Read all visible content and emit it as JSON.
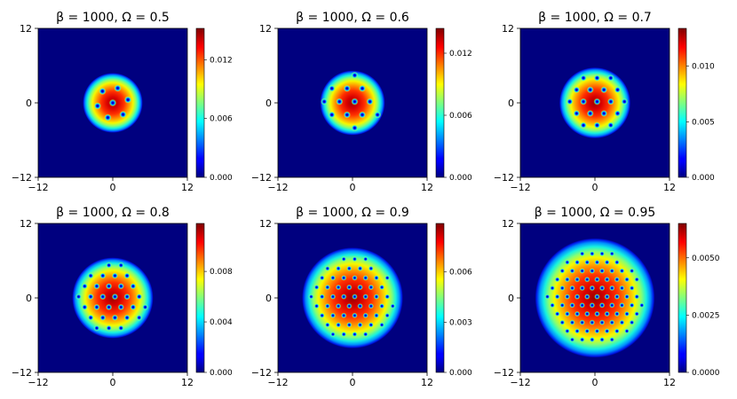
{
  "chart_data": [
    {
      "type": "heatmap",
      "title": "β = 1000, Ω = 0.5",
      "xticks": [
        "−12",
        "0",
        "12"
      ],
      "yticks": [
        "12",
        "0",
        "−12"
      ],
      "xlim": [
        -12,
        12
      ],
      "ylim": [
        -12,
        12
      ],
      "colorbar": {
        "range": [
          0,
          0.0152
        ],
        "ticks": [
          0,
          0.006,
          0.012
        ],
        "tick_labels": [
          "0.000",
          "0.006",
          "0.012"
        ]
      },
      "colormap": "jet",
      "condensate_radius": 4.8,
      "vortex_count": 7
    },
    {
      "type": "heatmap",
      "title": "β = 1000, Ω = 0.6",
      "xticks": [
        "−12",
        "0",
        "12"
      ],
      "yticks": [
        "12",
        "0",
        "−12"
      ],
      "xlim": [
        -12,
        12
      ],
      "ylim": [
        -12,
        12
      ],
      "colorbar": {
        "range": [
          0,
          0.0144
        ],
        "ticks": [
          0,
          0.006,
          0.012
        ],
        "tick_labels": [
          "0.000",
          "0.006",
          "0.012"
        ]
      },
      "colormap": "jet",
      "condensate_radius": 5.2,
      "vortex_count": 13
    },
    {
      "type": "heatmap",
      "title": "β = 1000, Ω = 0.7",
      "xticks": [
        "−12",
        "0",
        "12"
      ],
      "yticks": [
        "12",
        "0",
        "−12"
      ],
      "xlim": [
        -12,
        12
      ],
      "ylim": [
        -12,
        12
      ],
      "colorbar": {
        "range": [
          0,
          0.0134
        ],
        "ticks": [
          0,
          0.005,
          0.01
        ],
        "tick_labels": [
          "0.000",
          "0.005",
          "0.010"
        ]
      },
      "colormap": "jet",
      "condensate_radius": 5.7,
      "vortex_count": 19
    },
    {
      "type": "heatmap",
      "title": "β = 1000, Ω = 0.8",
      "xticks": [
        "−12",
        "0",
        "12"
      ],
      "yticks": [
        "12",
        "0",
        "−12"
      ],
      "xlim": [
        -12,
        12
      ],
      "ylim": [
        -12,
        12
      ],
      "colorbar": {
        "range": [
          0,
          0.0118
        ],
        "ticks": [
          0,
          0.004,
          0.008
        ],
        "tick_labels": [
          "0.000",
          "0.004",
          "0.008"
        ]
      },
      "colormap": "jet",
      "condensate_radius": 6.5,
      "vortex_count": 31
    },
    {
      "type": "heatmap",
      "title": "β = 1000, Ω = 0.9",
      "xticks": [
        "−12",
        "0",
        "12"
      ],
      "yticks": [
        "12",
        "0",
        "−12"
      ],
      "xlim": [
        -12,
        12
      ],
      "ylim": [
        -12,
        12
      ],
      "colorbar": {
        "range": [
          0,
          0.0089
        ],
        "ticks": [
          0,
          0.003,
          0.006
        ],
        "tick_labels": [
          "0.000",
          "0.003",
          "0.006"
        ]
      },
      "colormap": "jet",
      "condensate_radius": 8.1,
      "vortex_count": 55
    },
    {
      "type": "heatmap",
      "title": "β = 1000, Ω = 0.95",
      "xticks": [
        "−12",
        "0",
        "12"
      ],
      "yticks": [
        "12",
        "0",
        "−12"
      ],
      "xlim": [
        -12,
        12
      ],
      "ylim": [
        -12,
        12
      ],
      "colorbar": {
        "range": [
          0,
          0.0065
        ],
        "ticks": [
          0,
          0.0025,
          0.005
        ],
        "tick_labels": [
          "0.0000",
          "0.0025",
          "0.0050"
        ]
      },
      "colormap": "jet",
      "condensate_radius": 9.6,
      "vortex_count": 85
    }
  ]
}
